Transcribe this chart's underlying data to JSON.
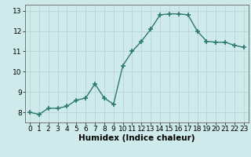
{
  "x": [
    0,
    1,
    2,
    3,
    4,
    5,
    6,
    7,
    8,
    9,
    10,
    11,
    12,
    13,
    14,
    15,
    16,
    17,
    18,
    19,
    20,
    21,
    22,
    23
  ],
  "y": [
    8.0,
    7.9,
    8.2,
    8.2,
    8.3,
    8.6,
    8.7,
    9.4,
    8.7,
    8.4,
    10.3,
    11.0,
    11.5,
    12.1,
    12.8,
    12.85,
    12.85,
    12.8,
    12.0,
    11.5,
    11.45,
    11.45,
    11.3,
    11.2
  ],
  "xlabel": "Humidex (Indice chaleur)",
  "xlim": [
    -0.5,
    23.5
  ],
  "ylim": [
    7.5,
    13.3
  ],
  "yticks": [
    8,
    9,
    10,
    11,
    12,
    13
  ],
  "xticks": [
    0,
    1,
    2,
    3,
    4,
    5,
    6,
    7,
    8,
    9,
    10,
    11,
    12,
    13,
    14,
    15,
    16,
    17,
    18,
    19,
    20,
    21,
    22,
    23
  ],
  "line_color": "#2d7a6e",
  "marker": "+",
  "marker_size": 4.0,
  "line_width": 1.0,
  "bg_color": "#ceeaea",
  "grid_color": "#b8d4d4",
  "xlabel_fontsize": 7.5,
  "tick_fontsize": 6.5
}
